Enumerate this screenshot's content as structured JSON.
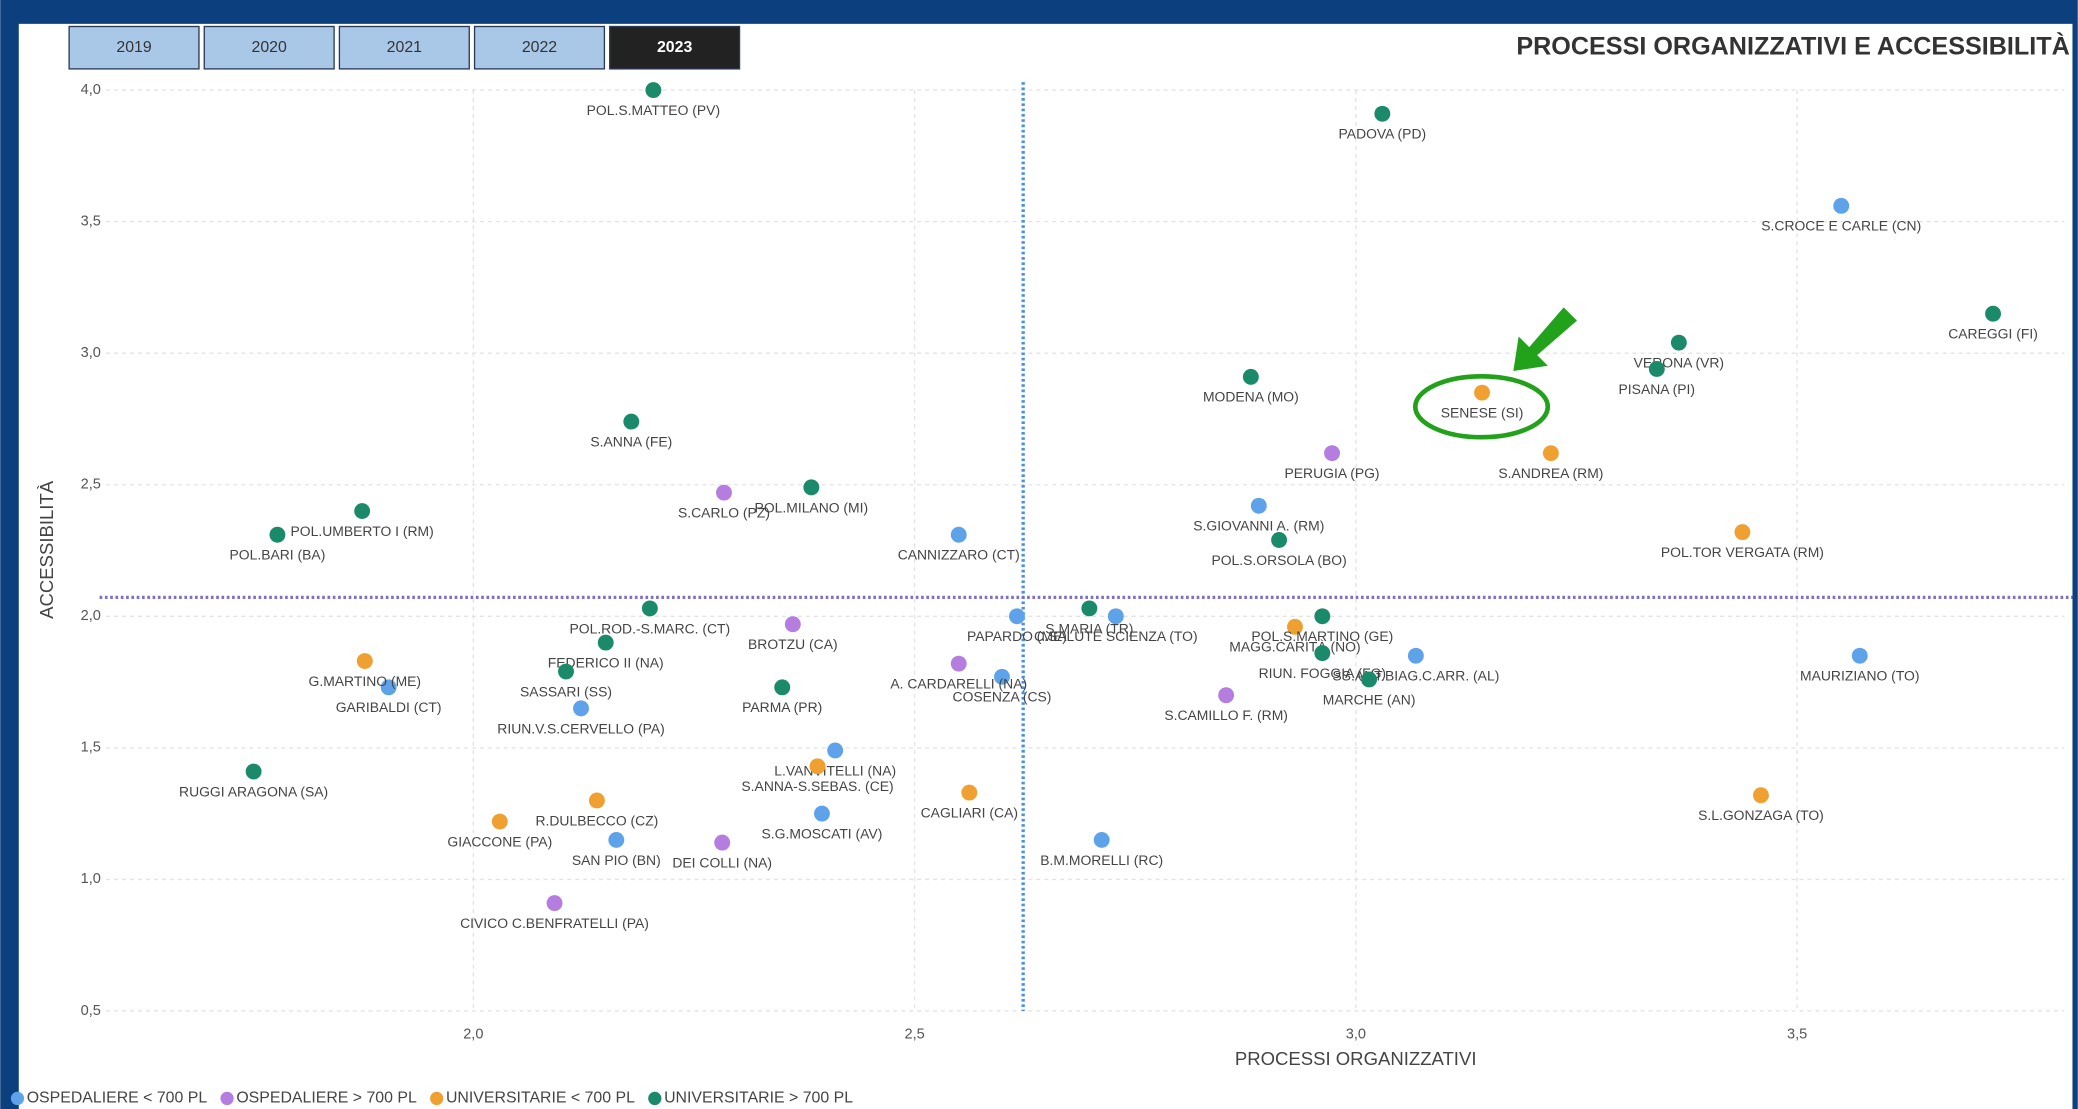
{
  "filters": {
    "years": [
      "2019",
      "2020",
      "2021",
      "2022",
      "2023"
    ],
    "selected": "2023"
  },
  "chart_data": {
    "type": "scatter",
    "title": "PROCESSI ORGANIZZATIVI E ACCESSIBILITÀ",
    "x_label": "PROCESSI ORGANIZZATIVI",
    "y_label": "ACCESSIBILITÀ",
    "xlim": [
      1.584,
      3.803
    ],
    "ylim": [
      0.5,
      4.0
    ],
    "xticks": [
      {
        "value": 2.0,
        "label": "2,0"
      },
      {
        "value": 2.5,
        "label": "2,5"
      },
      {
        "value": 3.0,
        "label": "3,0"
      },
      {
        "value": 3.5,
        "label": "3,5"
      }
    ],
    "yticks": [
      {
        "value": 0.5,
        "label": "0,5"
      },
      {
        "value": 1.0,
        "label": "1,0"
      },
      {
        "value": 1.5,
        "label": "1,5"
      },
      {
        "value": 2.0,
        "label": "2,0"
      },
      {
        "value": 2.5,
        "label": "2,5"
      },
      {
        "value": 3.0,
        "label": "3,0"
      },
      {
        "value": 3.5,
        "label": "3,5"
      },
      {
        "value": 4.0,
        "label": "4,0"
      }
    ],
    "grid": true,
    "reference_lines": {
      "x": 2.623,
      "y": 2.072,
      "color": "#4a90e2"
    },
    "series": [
      {
        "name": "OSPEDALIERE < 700 PL",
        "color": "#5ea3ea",
        "labels": [
          "S.CROCE E CARLE (CN)",
          "S.GIOVANNI A. (RM)",
          "CANNIZZARO (CT)",
          "PAPARDO (ME)",
          "C.SALUTE SCIENZA (TO)",
          "SS.ANT.BIAG.C.ARR. (AL)",
          "MAURIZIANO (TO)",
          "GARIBALDI (CT)",
          "COSENZA (CS)",
          "RIUN.V.S.CERVELLO (PA)",
          "L.VANVITELLI (NA)",
          "S.G.MOSCATI (AV)",
          "SAN PIO (BN)",
          "B.M.MORELLI (RC)"
        ],
        "x": [
          3.55,
          2.89,
          2.55,
          2.616,
          2.728,
          3.068,
          3.571,
          1.904,
          2.599,
          2.122,
          2.41,
          2.395,
          2.162,
          2.712
        ],
        "values": [
          3.56,
          2.42,
          2.31,
          2.0,
          2.0,
          1.85,
          1.85,
          1.73,
          1.77,
          1.65,
          1.49,
          1.25,
          1.15,
          1.15
        ]
      },
      {
        "name": "OSPEDALIERE > 700 PL",
        "color": "#b67de0",
        "labels": [
          "PERUGIA (PG)",
          "S.CARLO (PZ)",
          "BROTZU (CA)",
          "A. CARDARELLI (NA)",
          "S.CAMILLO F. (RM)",
          "DEI COLLI (NA)",
          "CIVICO C.BENFRATELLI (PA)"
        ],
        "x": [
          2.973,
          2.284,
          2.362,
          2.55,
          2.853,
          2.282,
          2.092
        ],
        "values": [
          2.62,
          2.47,
          1.97,
          1.82,
          1.7,
          1.14,
          0.91
        ]
      },
      {
        "name": "UNIVERSITARIE < 700 PL",
        "color": "#f0a030",
        "labels": [
          "SENESE (SI)",
          "S.ANDREA (RM)",
          "POL.TOR VERGATA (RM)",
          "MAGG.CARITÀ (NO)",
          "G.MARTINO (ME)",
          "S.ANNA-S.SEBAS. (CE)",
          "CAGLIARI (CA)",
          "S.L.GONZAGA (TO)",
          "R.DULBECCO (CZ)",
          "GIACCONE (PA)"
        ],
        "x": [
          3.143,
          3.221,
          3.438,
          2.931,
          1.877,
          2.39,
          2.562,
          3.459,
          2.14,
          2.03
        ],
        "values": [
          2.85,
          2.62,
          2.32,
          1.96,
          1.83,
          1.43,
          1.33,
          1.32,
          1.3,
          1.22
        ]
      },
      {
        "name": "UNIVERSITARIE > 700 PL",
        "color": "#1b8a6b",
        "labels": [
          "POL.S.MATTEO (PV)",
          "PADOVA (PD)",
          "VERONA (VR)",
          "PISANA (PI)",
          "CAREGGI (FI)",
          "MODENA (MO)",
          "S.ANNA (FE)",
          "POL.MILANO (MI)",
          "POL.UMBERTO I (RM)",
          "POL.BARI (BA)",
          "POL.S.ORSOLA (BO)",
          "POL.ROD.-S.MARC. (CT)",
          "S.MARIA (TR)",
          "POL.S.MARTINO (GE)",
          "FEDERICO II (NA)",
          "SASSARI (SS)",
          "PARMA (PR)",
          "RIUN. FOGGIA (FG)",
          "MARCHE (AN)",
          "RUGGI ARAGONA (SA)"
        ],
        "x": [
          2.204,
          3.03,
          3.366,
          3.341,
          3.722,
          2.881,
          2.179,
          2.383,
          1.874,
          1.778,
          2.913,
          2.2,
          2.698,
          2.962,
          2.15,
          2.105,
          2.35,
          2.962,
          3.015,
          1.751
        ],
        "values": [
          4.0,
          3.91,
          3.04,
          2.94,
          3.15,
          2.91,
          2.74,
          2.49,
          2.4,
          2.31,
          2.29,
          2.03,
          2.03,
          2.0,
          1.9,
          1.79,
          1.73,
          1.86,
          1.76,
          1.41
        ]
      }
    ]
  }
}
